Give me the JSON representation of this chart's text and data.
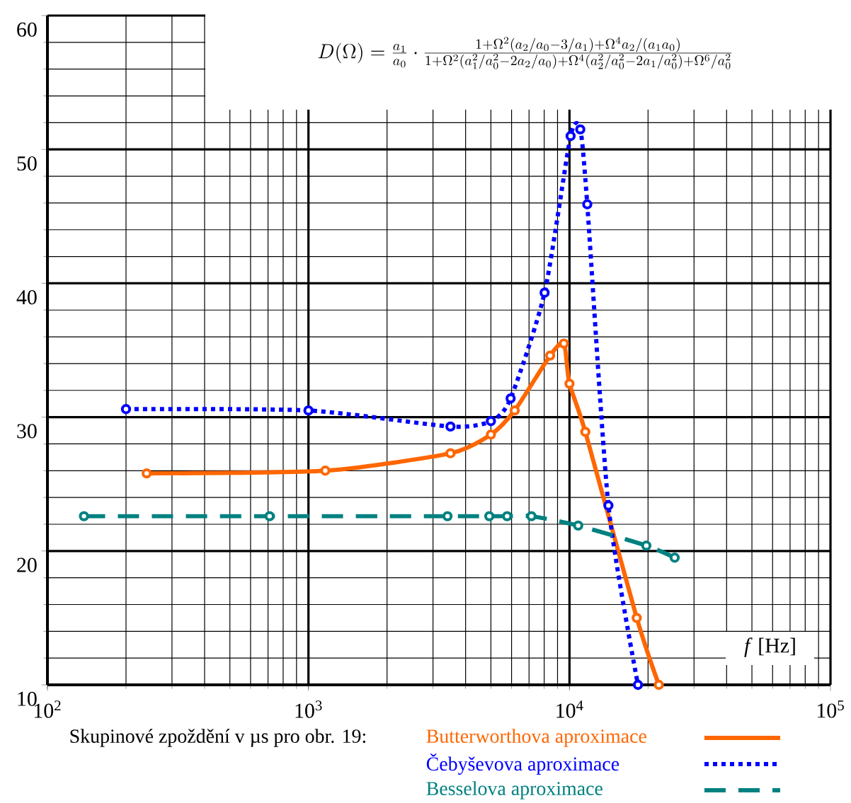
{
  "chart_data": {
    "type": "line",
    "log": "x",
    "grid": true,
    "legend": "bottom",
    "marker": "circle",
    "xlabel": "*f*  [Hz]",
    "legend_title": "Skupinové zpoždění v µs  pro obr. 19:",
    "annotations": [
      "D(\\Omega)=\\frac{a_1}{a_0}\\cdot\\frac{1+\\Omega^2(a_2/a_0-3/a_1)+\\Omega^4a_2/(a_1a_0)}{1+\\Omega^2(a_1^2/a_0^2-2a_2/a_0)+\\Omega^4(a_2^2/a_0^2-2a_1/a_0^2)+\\Omega^6/a_0^2}"
    ],
    "xlim": [
      100,
      100000
    ],
    "ylim": [
      10,
      60
    ],
    "xticks": [
      {
        "value": 100,
        "label": "10$^{2}$"
      },
      {
        "value": 1000,
        "label": "10$^{3}$"
      },
      {
        "value": 10000,
        "label": "10$^{4}$"
      },
      {
        "value": 100000,
        "label": "10$^{5}$"
      }
    ],
    "yticks": [
      10,
      20,
      30,
      40,
      50,
      60
    ],
    "series": [
      {
        "name": "Butterworthova aproximace",
        "color": "#ff6600",
        "line_style": "solid",
        "x": [
          240,
          1160,
          3500,
          5000,
          6170,
          8430,
          9520,
          10000,
          11500,
          18100,
          22000
        ],
        "values": [
          25.8,
          26.0,
          27.3,
          28.7,
          30.5,
          34.6,
          35.5,
          32.5,
          28.9,
          15.0,
          10.0
        ]
      },
      {
        "name": "Čebyševova aproximace",
        "color": "#0000ff",
        "line_style": "dotted",
        "x": [
          200,
          1000,
          3500,
          5000,
          5950,
          8030,
          10100,
          11000,
          11700,
          14100,
          18300
        ],
        "values": [
          30.6,
          30.5,
          29.3,
          29.7,
          31.4,
          39.3,
          51.0,
          51.5,
          45.9,
          23.4,
          10.0
        ]
      },
      {
        "name": "Besselova aproximace",
        "color": "#008080",
        "line_style": "dashed",
        "x": [
          138,
          710,
          3410,
          4930,
          5770,
          7150,
          10800,
          19700,
          25300
        ],
        "values": [
          22.6,
          22.6,
          22.6,
          22.6,
          22.6,
          22.6,
          21.9,
          20.4,
          19.5
        ]
      }
    ]
  }
}
